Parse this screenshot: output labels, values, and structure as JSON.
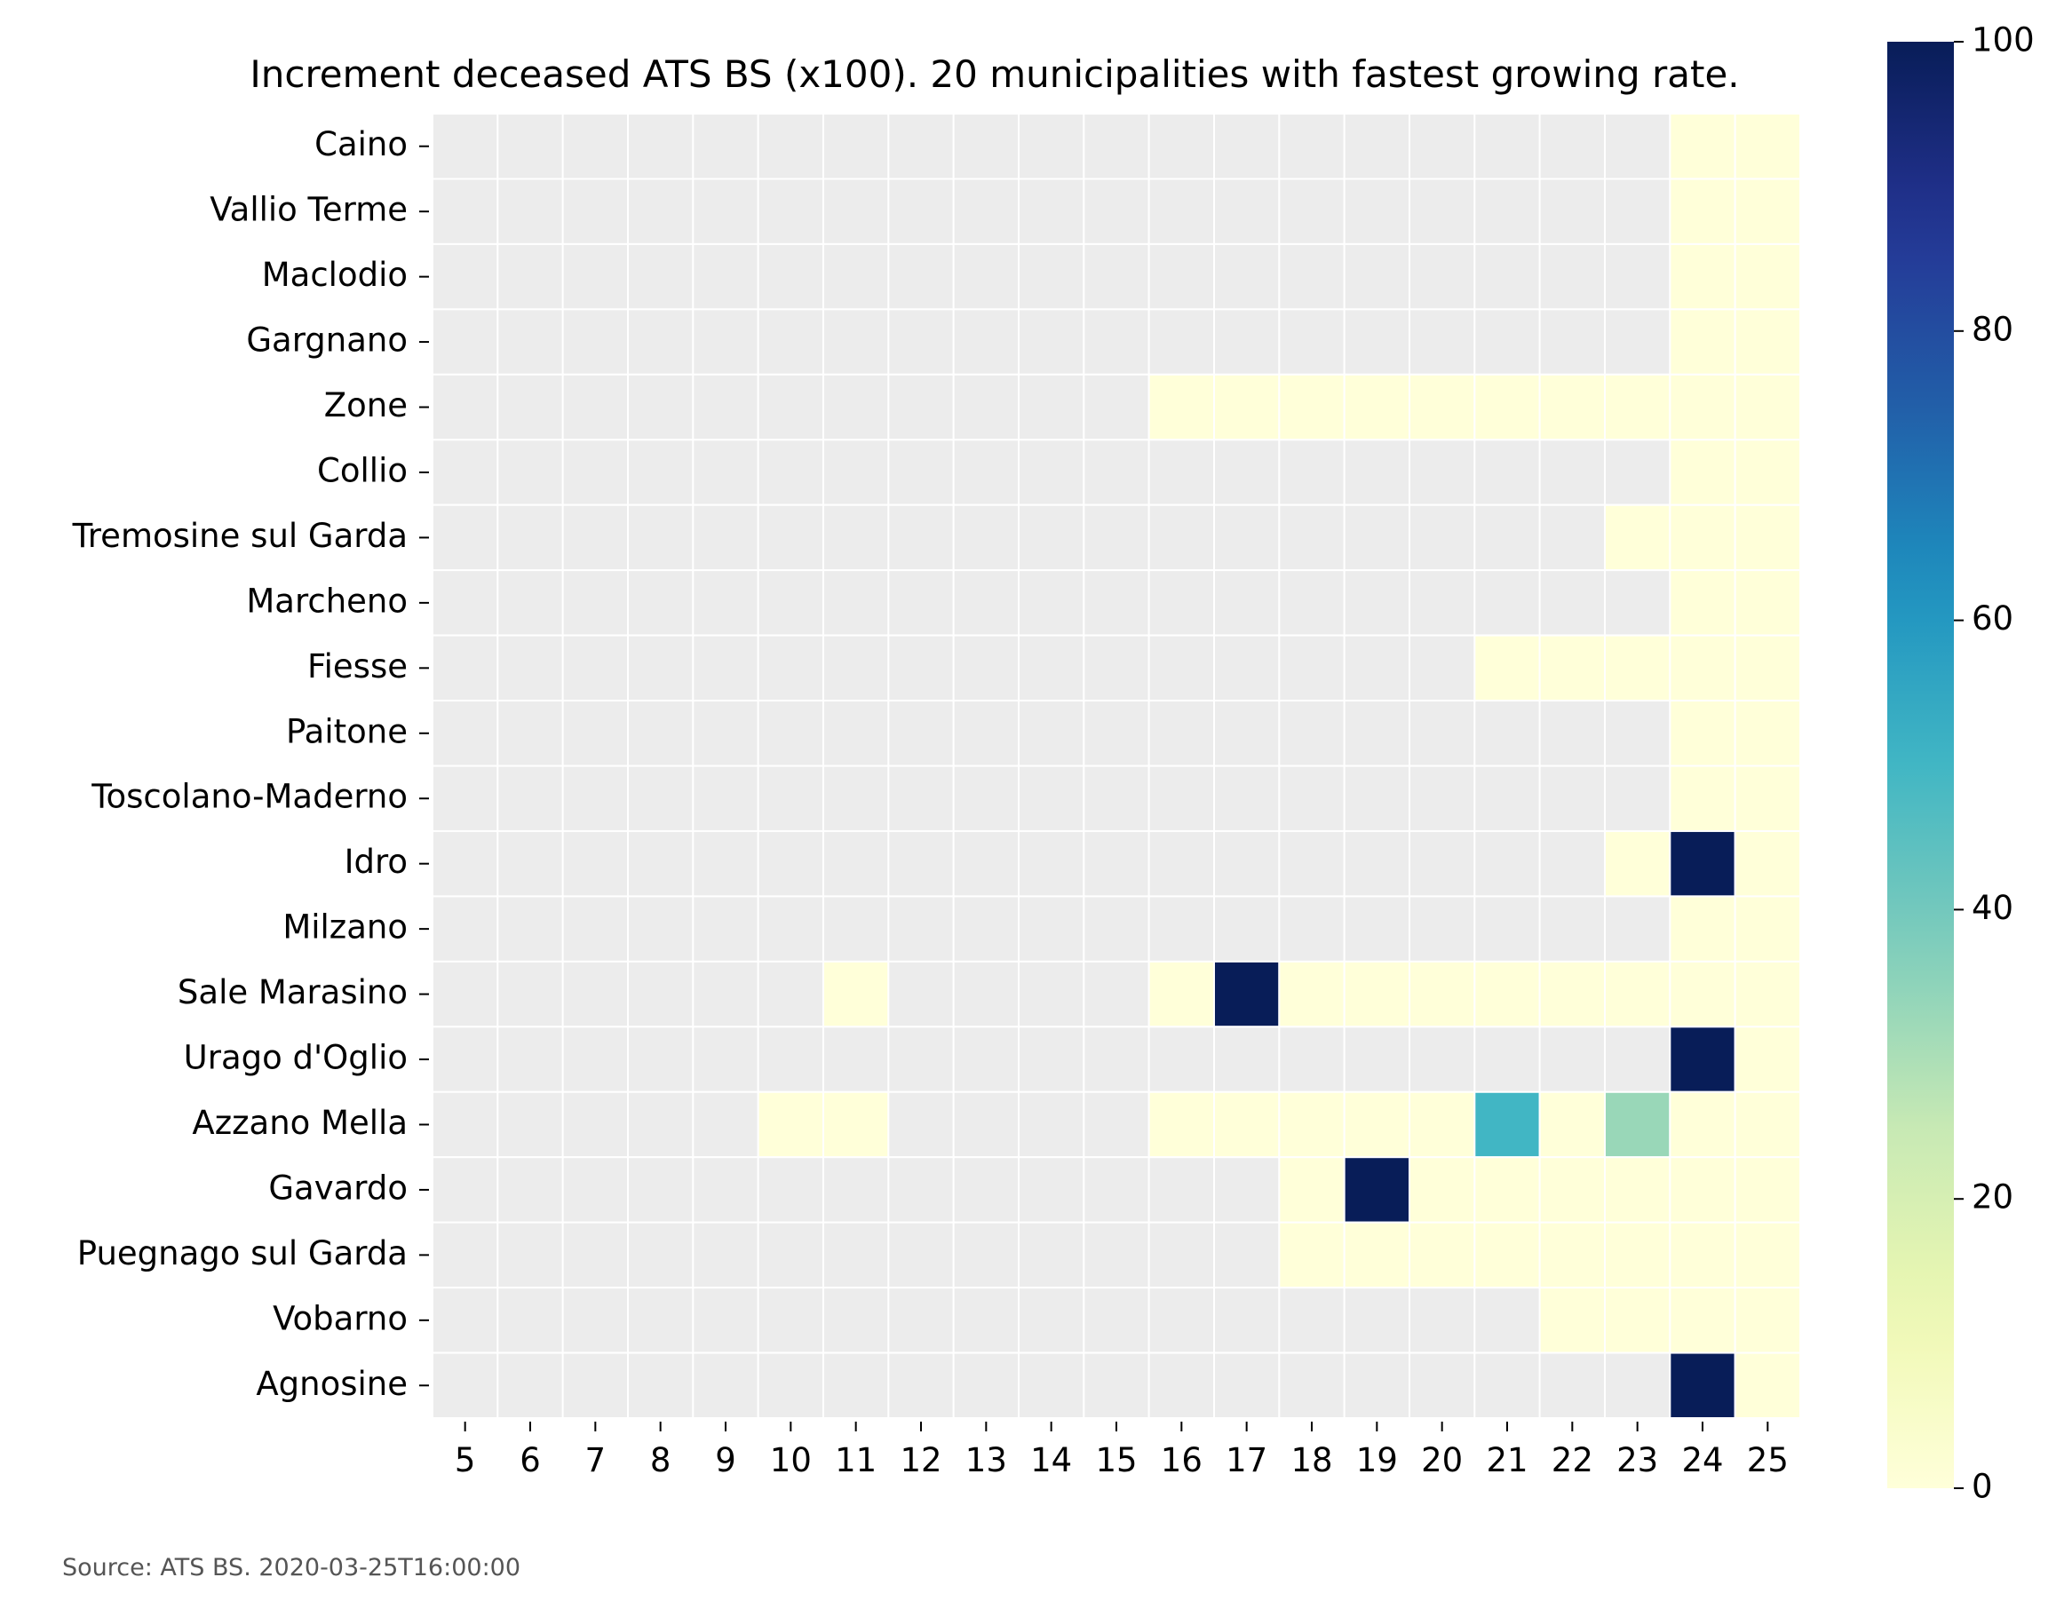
{
  "chart_data": {
    "type": "heatmap",
    "title": "Increment deceased ATS BS (x100). 20 municipalities with fastest growing rate.",
    "source": "Source: ATS BS. 2020-03-25T16:00:00",
    "x": [
      5,
      6,
      7,
      8,
      9,
      10,
      11,
      12,
      13,
      14,
      15,
      16,
      17,
      18,
      19,
      20,
      21,
      22,
      23,
      24,
      25
    ],
    "x_labels": [
      "5",
      "6",
      "7",
      "8",
      "9",
      "10",
      "11",
      "12",
      "13",
      "14",
      "15",
      "16",
      "17",
      "18",
      "19",
      "20",
      "21",
      "22",
      "23",
      "24",
      "25"
    ],
    "rows": [
      "Caino",
      "Vallio Terme",
      "Maclodio",
      "Gargnano",
      "Zone",
      "Collio",
      "Tremosine sul Garda",
      "Marcheno",
      "Fiesse",
      "Paitone",
      "Toscolano-Maderno",
      "Idro",
      "Milzano",
      "Sale Marasino",
      "Urago d'Oglio",
      "Azzano Mella",
      "Gavardo",
      "Puegnago sul Garda",
      "Vobarno",
      "Agnosine"
    ],
    "values": [
      [
        null,
        null,
        null,
        null,
        null,
        null,
        null,
        null,
        null,
        null,
        null,
        null,
        null,
        null,
        null,
        null,
        null,
        null,
        null,
        0,
        0
      ],
      [
        null,
        null,
        null,
        null,
        null,
        null,
        null,
        null,
        null,
        null,
        null,
        null,
        null,
        null,
        null,
        null,
        null,
        null,
        null,
        0,
        0
      ],
      [
        null,
        null,
        null,
        null,
        null,
        null,
        null,
        null,
        null,
        null,
        null,
        null,
        null,
        null,
        null,
        null,
        null,
        null,
        null,
        0,
        0
      ],
      [
        null,
        null,
        null,
        null,
        null,
        null,
        null,
        null,
        null,
        null,
        null,
        null,
        null,
        null,
        null,
        null,
        null,
        null,
        null,
        0,
        0
      ],
      [
        null,
        null,
        null,
        null,
        null,
        null,
        null,
        null,
        null,
        null,
        null,
        0,
        0,
        0,
        0,
        0,
        0,
        0,
        0,
        0,
        0
      ],
      [
        null,
        null,
        null,
        null,
        null,
        null,
        null,
        null,
        null,
        null,
        null,
        null,
        null,
        null,
        null,
        null,
        null,
        null,
        null,
        0,
        0
      ],
      [
        null,
        null,
        null,
        null,
        null,
        null,
        null,
        null,
        null,
        null,
        null,
        null,
        null,
        null,
        null,
        null,
        null,
        null,
        0,
        0,
        0
      ],
      [
        null,
        null,
        null,
        null,
        null,
        null,
        null,
        null,
        null,
        null,
        null,
        null,
        null,
        null,
        null,
        null,
        null,
        null,
        null,
        0,
        0
      ],
      [
        null,
        null,
        null,
        null,
        null,
        null,
        null,
        null,
        null,
        null,
        null,
        null,
        null,
        null,
        null,
        null,
        0,
        0,
        0,
        0,
        0
      ],
      [
        null,
        null,
        null,
        null,
        null,
        null,
        null,
        null,
        null,
        null,
        null,
        null,
        null,
        null,
        null,
        null,
        null,
        null,
        null,
        0,
        0
      ],
      [
        null,
        null,
        null,
        null,
        null,
        null,
        null,
        null,
        null,
        null,
        null,
        null,
        null,
        null,
        null,
        null,
        null,
        null,
        null,
        0,
        0
      ],
      [
        null,
        null,
        null,
        null,
        null,
        null,
        null,
        null,
        null,
        null,
        null,
        null,
        null,
        null,
        null,
        null,
        null,
        null,
        0,
        100,
        0
      ],
      [
        null,
        null,
        null,
        null,
        null,
        null,
        null,
        null,
        null,
        null,
        null,
        null,
        null,
        null,
        null,
        null,
        null,
        null,
        null,
        0,
        0
      ],
      [
        null,
        null,
        null,
        null,
        null,
        null,
        0,
        null,
        null,
        null,
        null,
        0,
        100,
        0,
        0,
        0,
        0,
        0,
        0,
        0,
        0
      ],
      [
        null,
        null,
        null,
        null,
        null,
        null,
        null,
        null,
        null,
        null,
        null,
        null,
        null,
        null,
        null,
        null,
        null,
        null,
        null,
        100,
        0
      ],
      [
        null,
        null,
        null,
        null,
        null,
        0,
        0,
        null,
        null,
        null,
        null,
        0,
        0,
        0,
        0,
        0,
        50,
        0,
        33,
        0,
        0
      ],
      [
        null,
        null,
        null,
        null,
        null,
        null,
        null,
        null,
        null,
        null,
        null,
        null,
        null,
        0,
        100,
        0,
        0,
        0,
        0,
        0,
        0
      ],
      [
        null,
        null,
        null,
        null,
        null,
        null,
        null,
        null,
        null,
        null,
        null,
        null,
        null,
        0,
        0,
        0,
        0,
        0,
        0,
        0,
        0
      ],
      [
        null,
        null,
        null,
        null,
        null,
        null,
        null,
        null,
        null,
        null,
        null,
        null,
        null,
        null,
        null,
        null,
        null,
        0,
        0,
        0,
        0
      ],
      [
        null,
        null,
        null,
        null,
        null,
        null,
        null,
        null,
        null,
        null,
        null,
        null,
        null,
        null,
        null,
        null,
        null,
        null,
        null,
        100,
        0
      ]
    ],
    "colorbar": {
      "colormap": "YlGnBu",
      "range": [
        0,
        100
      ],
      "ticks": [
        0,
        20,
        40,
        60,
        80,
        100
      ]
    },
    "missing_color": "#ececec",
    "grid_line_color": "#ffffff"
  }
}
